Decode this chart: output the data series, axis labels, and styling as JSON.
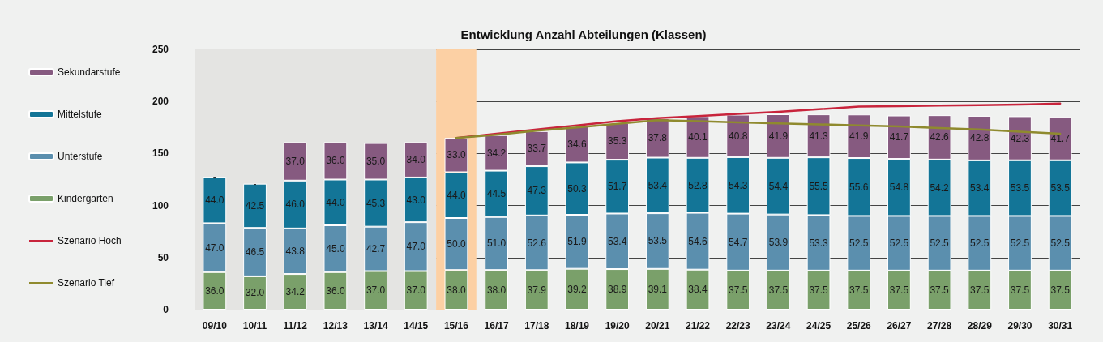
{
  "chart_data": {
    "type": "bar",
    "title": "Entwicklung Anzahl Abteilungen (Klassen)",
    "stacked": true,
    "categories": [
      "09/10",
      "10/11",
      "11/12",
      "12/13",
      "13/14",
      "14/15",
      "15/16",
      "16/17",
      "17/18",
      "18/19",
      "19/20",
      "20/21",
      "21/22",
      "22/23",
      "23/24",
      "24/25",
      "25/26",
      "26/27",
      "27/28",
      "28/29",
      "29/30",
      "30/31"
    ],
    "series": [
      {
        "name": "Kindergarten",
        "color": "#7aa06a",
        "values": [
          36.0,
          32.0,
          34.2,
          36.0,
          37.0,
          37.0,
          38.0,
          38.0,
          37.9,
          39.2,
          38.9,
          39.1,
          38.4,
          37.5,
          37.5,
          37.5,
          37.5,
          37.5,
          37.5,
          37.5,
          37.5,
          37.5
        ],
        "value_labels": [
          "36.0",
          "32.0",
          "34.2",
          "36.0",
          "37.0",
          "37.0",
          "38.0",
          "38.0",
          "37.9",
          "39.2",
          "38.9",
          "39.1",
          "38.4",
          "37.5",
          "37.5",
          "37.5",
          "37.5",
          "37.5",
          "37.5",
          "37.5",
          "37.5",
          "37.5"
        ]
      },
      {
        "name": "Unterstufe",
        "color": "#5b8fae",
        "values": [
          47.0,
          46.5,
          43.8,
          45.0,
          42.7,
          47.0,
          50.0,
          51.0,
          52.6,
          51.9,
          53.4,
          53.5,
          54.6,
          54.7,
          53.9,
          53.3,
          52.5,
          52.5,
          52.5,
          52.5,
          52.5,
          52.5
        ],
        "value_labels": [
          "47.0",
          "46.5",
          "43.8",
          "45.0",
          "42.7",
          "47.0",
          "50.0",
          "51.0",
          "52.6",
          "51.9",
          "53.4",
          "53.5",
          "54.6",
          "54.7",
          "53.9",
          "53.3",
          "52.5",
          "52.5",
          "52.5",
          "52.5",
          "52.5",
          "52.5"
        ]
      },
      {
        "name": "Mittelstufe",
        "color": "#137597",
        "values": [
          44.0,
          42.5,
          46.0,
          44.0,
          45.3,
          43.0,
          44.0,
          44.5,
          47.3,
          50.3,
          51.7,
          53.4,
          52.8,
          54.3,
          54.4,
          55.5,
          55.6,
          54.8,
          54.2,
          53.4,
          53.5,
          53.5
        ],
        "value_labels": [
          "44.0",
          "42.5",
          "46.0",
          "44.0",
          "45.3",
          "43.0",
          "44.0",
          "44.5",
          "47.3",
          "50.3",
          "51.7",
          "53.4",
          "52.8",
          "54.3",
          "54.4",
          "55.5",
          "55.6",
          "54.8",
          "54.2",
          "53.4",
          "53.5",
          "53.5"
        ]
      },
      {
        "name": "Sekundarstufe",
        "color": "#865a80",
        "values": [
          0,
          0,
          37.0,
          36.0,
          35.0,
          34.0,
          33.0,
          34.2,
          33.7,
          34.6,
          35.3,
          37.8,
          40.1,
          40.8,
          41.9,
          41.3,
          41.9,
          41.7,
          42.6,
          42.8,
          42.3,
          41.7
        ],
        "value_labels": [
          "-",
          "-",
          "37.0",
          "36.0",
          "35.0",
          "34.0",
          "33.0",
          "34.2",
          "33.7",
          "34.6",
          "35.3",
          "37.8",
          "40.1",
          "40.8",
          "41.9",
          "41.3",
          "41.9",
          "41.7",
          "42.6",
          "42.8",
          "42.3",
          "41.7"
        ]
      },
      {
        "name": "Szenario Hoch",
        "type": "line",
        "color": "#c8243c",
        "values": [
          null,
          null,
          null,
          null,
          null,
          null,
          165,
          169,
          173,
          177,
          181,
          184,
          186,
          188,
          190,
          192.5,
          195,
          195.5,
          196,
          196.5,
          197,
          198
        ]
      },
      {
        "name": "Szenario Tief",
        "type": "line",
        "color": "#8f8a2e",
        "values": [
          null,
          null,
          null,
          null,
          null,
          null,
          165,
          168,
          172,
          175,
          178.5,
          182,
          181,
          180,
          179,
          178,
          177,
          176,
          174.5,
          173,
          171,
          169
        ]
      }
    ],
    "ylim": [
      0,
      250
    ],
    "yticks": [
      0,
      50,
      100,
      150,
      200,
      250
    ],
    "grid": "y",
    "legend": "left",
    "marker": "none",
    "line_style": "solid",
    "bands": [
      {
        "axis": "x",
        "from": "09/10",
        "to": "14/15",
        "color": "#e4e4e2"
      },
      {
        "axis": "x",
        "from": "15/16",
        "to": "15/16",
        "color": "#fcd0a4"
      }
    ]
  }
}
